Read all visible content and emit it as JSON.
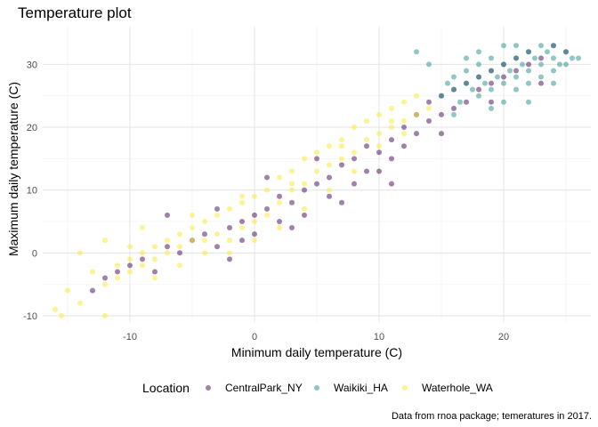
{
  "chart_data": {
    "type": "scatter",
    "title": "Temperature plot",
    "xlabel": "Minimum daily temperature (C)",
    "ylabel": "Maximum daily temperature (C)",
    "caption": "Data from rnoa package; temeratures in 2017.",
    "xlim": [
      -17,
      27
    ],
    "ylim": [
      -11,
      36
    ],
    "x_ticks": [
      -10,
      0,
      10,
      20
    ],
    "y_ticks": [
      -10,
      0,
      10,
      20,
      30
    ],
    "x_tick_labels": [
      "-10",
      "0",
      "10",
      "20"
    ],
    "y_tick_labels": [
      "-10",
      "0",
      "10",
      "20",
      "30"
    ],
    "grid": true,
    "legend": {
      "title": "Location",
      "position": "bottom"
    },
    "series": [
      {
        "name": "CentralPark_NY",
        "color": "#440154",
        "points": [
          [
            -13,
            -6
          ],
          [
            -12,
            -4
          ],
          [
            -11,
            -3
          ],
          [
            -10,
            -2
          ],
          [
            -9,
            -1
          ],
          [
            -8,
            -3
          ],
          [
            -7,
            1
          ],
          [
            -6,
            0
          ],
          [
            -5,
            2
          ],
          [
            -4,
            3
          ],
          [
            -3,
            1
          ],
          [
            -2,
            4
          ],
          [
            -1,
            5
          ],
          [
            -1,
            2
          ],
          [
            0,
            3
          ],
          [
            0,
            6
          ],
          [
            1,
            7
          ],
          [
            2,
            5
          ],
          [
            2,
            9
          ],
          [
            3,
            8
          ],
          [
            4,
            10
          ],
          [
            4,
            6
          ],
          [
            5,
            11
          ],
          [
            6,
            9
          ],
          [
            6,
            12
          ],
          [
            7,
            14
          ],
          [
            8,
            11
          ],
          [
            8,
            15
          ],
          [
            9,
            13
          ],
          [
            9,
            17
          ],
          [
            10,
            16
          ],
          [
            10,
            13
          ],
          [
            11,
            18
          ],
          [
            11,
            15
          ],
          [
            12,
            20
          ],
          [
            12,
            17
          ],
          [
            13,
            19
          ],
          [
            13,
            22
          ],
          [
            14,
            21
          ],
          [
            14,
            24
          ],
          [
            15,
            22
          ],
          [
            15,
            25
          ],
          [
            16,
            23
          ],
          [
            16,
            26
          ],
          [
            17,
            24
          ],
          [
            17,
            27
          ],
          [
            18,
            26
          ],
          [
            18,
            28
          ],
          [
            19,
            27
          ],
          [
            19,
            29
          ],
          [
            20,
            28
          ],
          [
            20,
            30
          ],
          [
            21,
            29
          ],
          [
            21,
            31
          ],
          [
            22,
            30
          ],
          [
            22,
            32
          ],
          [
            23,
            31
          ],
          [
            24,
            33
          ],
          [
            25,
            32
          ],
          [
            -7,
            6
          ],
          [
            -3,
            7
          ],
          [
            1,
            12
          ],
          [
            5,
            15
          ],
          [
            3,
            4
          ],
          [
            -2,
            -1
          ],
          [
            7,
            8
          ],
          [
            11,
            11
          ],
          [
            15,
            19
          ],
          [
            19,
            24
          ],
          [
            23,
            27
          ]
        ]
      },
      {
        "name": "Waikiki_HA",
        "color": "#21908C",
        "points": [
          [
            15,
            25
          ],
          [
            15.5,
            27
          ],
          [
            16,
            26
          ],
          [
            16,
            28
          ],
          [
            16.5,
            24
          ],
          [
            17,
            27
          ],
          [
            17,
            29
          ],
          [
            17.5,
            26
          ],
          [
            18,
            28
          ],
          [
            18,
            30
          ],
          [
            18.5,
            27
          ],
          [
            19,
            29
          ],
          [
            19,
            31
          ],
          [
            19.5,
            28
          ],
          [
            20,
            30
          ],
          [
            20,
            27
          ],
          [
            20.5,
            29
          ],
          [
            21,
            31
          ],
          [
            21,
            28
          ],
          [
            21.5,
            30
          ],
          [
            22,
            32
          ],
          [
            22,
            29
          ],
          [
            22.5,
            31
          ],
          [
            23,
            30
          ],
          [
            23,
            33
          ],
          [
            23.5,
            32
          ],
          [
            24,
            31
          ],
          [
            24,
            33
          ],
          [
            24.5,
            30
          ],
          [
            25,
            32
          ],
          [
            25.5,
            31
          ],
          [
            13,
            32
          ],
          [
            14,
            30
          ],
          [
            17,
            31
          ],
          [
            18,
            25
          ],
          [
            19,
            26
          ],
          [
            20,
            33
          ],
          [
            21,
            26
          ],
          [
            22,
            27
          ],
          [
            23,
            28
          ],
          [
            24,
            29
          ],
          [
            25,
            30
          ],
          [
            16,
            22
          ],
          [
            19,
            23
          ],
          [
            26,
            31
          ],
          [
            20,
            24
          ],
          [
            22,
            24
          ],
          [
            24,
            27
          ],
          [
            18,
            32
          ],
          [
            21,
            33
          ]
        ]
      },
      {
        "name": "Waterhole_WA",
        "color": "#FDE725",
        "points": [
          [
            -16,
            -9
          ],
          [
            -15.5,
            -10
          ],
          [
            -15,
            -6
          ],
          [
            -14,
            -8
          ],
          [
            -13,
            -3
          ],
          [
            -12,
            -10
          ],
          [
            -12,
            -5
          ],
          [
            -11,
            -2
          ],
          [
            -11,
            -4
          ],
          [
            -10,
            -1
          ],
          [
            -10,
            -3
          ],
          [
            -9,
            0
          ],
          [
            -9,
            -2
          ],
          [
            -8,
            1
          ],
          [
            -8,
            -1
          ],
          [
            -7,
            2
          ],
          [
            -7,
            0
          ],
          [
            -6,
            3
          ],
          [
            -6,
            1
          ],
          [
            -5,
            4
          ],
          [
            -5,
            2
          ],
          [
            -4,
            5
          ],
          [
            -4,
            0
          ],
          [
            -3,
            6
          ],
          [
            -3,
            3
          ],
          [
            -2,
            7
          ],
          [
            -2,
            2
          ],
          [
            -1,
            8
          ],
          [
            -1,
            4
          ],
          [
            0,
            9
          ],
          [
            0,
            5
          ],
          [
            1,
            10
          ],
          [
            1,
            6
          ],
          [
            2,
            12
          ],
          [
            2,
            8
          ],
          [
            3,
            13
          ],
          [
            3,
            10
          ],
          [
            4,
            15
          ],
          [
            4,
            11
          ],
          [
            5,
            16
          ],
          [
            5,
            13
          ],
          [
            6,
            17
          ],
          [
            6,
            14
          ],
          [
            7,
            18
          ],
          [
            7,
            15
          ],
          [
            8,
            20
          ],
          [
            8,
            16
          ],
          [
            9,
            21
          ],
          [
            9,
            18
          ],
          [
            10,
            22
          ],
          [
            10,
            19
          ],
          [
            11,
            23
          ],
          [
            11,
            20
          ],
          [
            12,
            24
          ],
          [
            12,
            21
          ],
          [
            13,
            25
          ],
          [
            13,
            22
          ],
          [
            -12,
            2
          ],
          [
            -10,
            1
          ],
          [
            -8,
            -4
          ],
          [
            -6,
            -2
          ],
          [
            -4,
            2
          ],
          [
            -2,
            0
          ],
          [
            0,
            2
          ],
          [
            2,
            4
          ],
          [
            4,
            7
          ],
          [
            6,
            10
          ],
          [
            8,
            13
          ],
          [
            10,
            17
          ],
          [
            12,
            19
          ],
          [
            -14,
            0
          ],
          [
            -9,
            4
          ],
          [
            -5,
            6
          ],
          [
            -1,
            9
          ],
          [
            3,
            11
          ],
          [
            7,
            17
          ],
          [
            11,
            21
          ],
          [
            14,
            23
          ]
        ]
      }
    ]
  }
}
